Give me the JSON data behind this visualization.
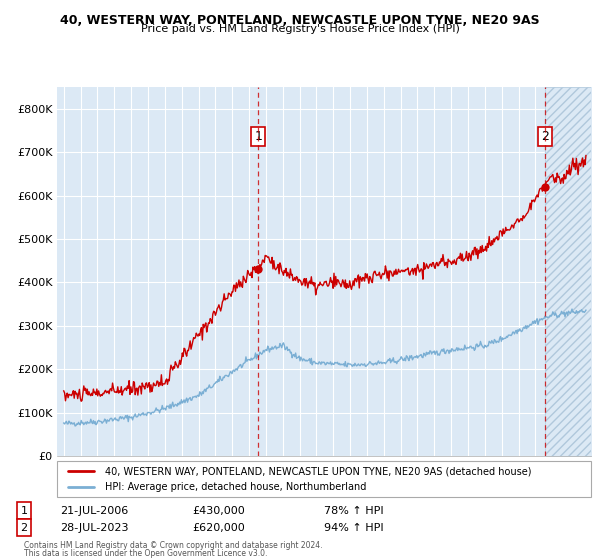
{
  "title_line1": "40, WESTERN WAY, PONTELAND, NEWCASTLE UPON TYNE, NE20 9AS",
  "title_line2": "Price paid vs. HM Land Registry's House Price Index (HPI)",
  "ylim": [
    0,
    850000
  ],
  "yticks": [
    0,
    100000,
    200000,
    300000,
    400000,
    500000,
    600000,
    700000,
    800000
  ],
  "ytick_labels": [
    "£0",
    "£100K",
    "£200K",
    "£300K",
    "£400K",
    "£500K",
    "£600K",
    "£700K",
    "£800K"
  ],
  "sale1_date": 2006.55,
  "sale1_price": 430000,
  "sale1_label": "1",
  "sale2_date": 2023.57,
  "sale2_price": 620000,
  "sale2_label": "2",
  "legend_red": "40, WESTERN WAY, PONTELAND, NEWCASTLE UPON TYNE, NE20 9AS (detached house)",
  "legend_blue": "HPI: Average price, detached house, Northumberland",
  "table_row1": [
    "1",
    "21-JUL-2006",
    "£430,000",
    "78% ↑ HPI"
  ],
  "table_row2": [
    "2",
    "28-JUL-2023",
    "£620,000",
    "94% ↑ HPI"
  ],
  "footnote1": "Contains HM Land Registry data © Crown copyright and database right 2024.",
  "footnote2": "This data is licensed under the Open Government Licence v3.0.",
  "bg_chart": "#dce9f5",
  "bg_white": "#ffffff",
  "grid_color": "#ffffff",
  "red_color": "#cc0000",
  "blue_color": "#7bafd4",
  "hatch_color": "#c8d8e8"
}
